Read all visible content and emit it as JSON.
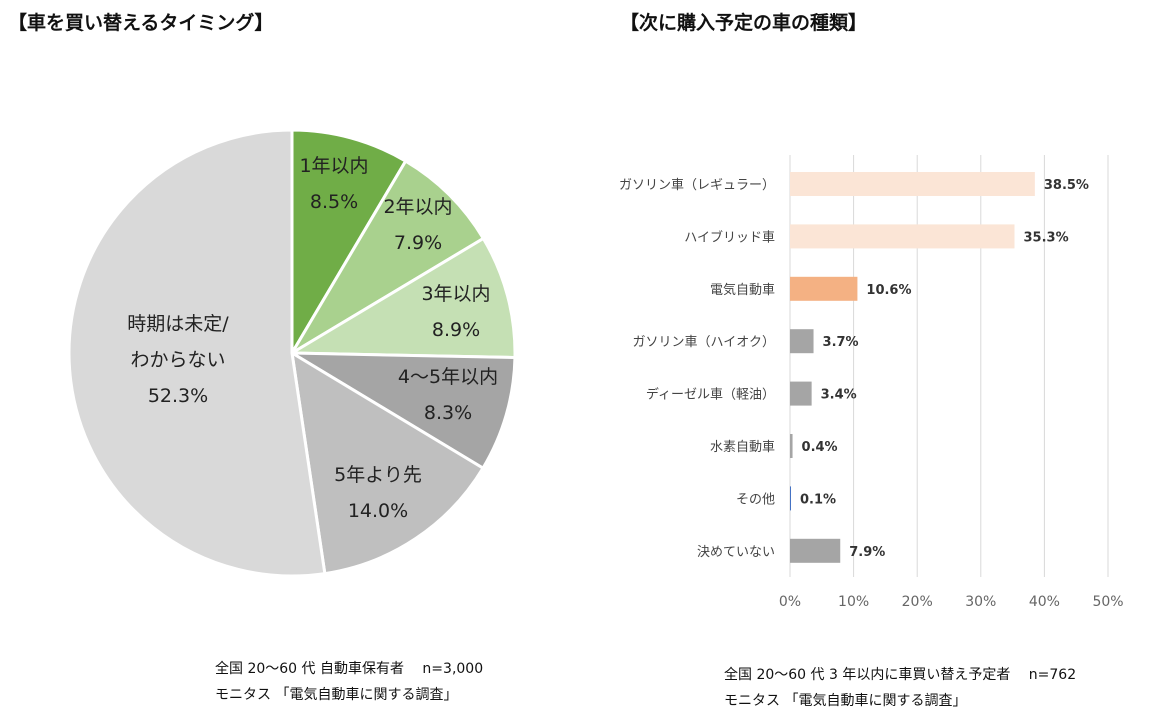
{
  "chart_data": [
    {
      "type": "pie",
      "title": "【車を買い替えるタイミング】",
      "slices": [
        {
          "label": "1年以内",
          "value": 8.5,
          "display": "8.5%",
          "color": "#70ad47"
        },
        {
          "label": "2年以内",
          "value": 7.9,
          "display": "7.9%",
          "color": "#a9d18e"
        },
        {
          "label": "3年以内",
          "value": 8.9,
          "display": "8.9%",
          "color": "#c5e0b4"
        },
        {
          "label": "4～5年以内",
          "value": 8.3,
          "display": "8.3%",
          "color": "#a5a5a5"
        },
        {
          "label": "5年より先",
          "value": 14.0,
          "display": "14.0%",
          "color": "#bfbfbf"
        },
        {
          "label": "時期は未定/|わからない",
          "value": 52.3,
          "display": "52.3%",
          "color": "#d9d9d9"
        }
      ],
      "note": [
        "全国 20～60 代  自動車保有者　 n=3,000",
        "モニタス 「電気自動車に関する調査」"
      ]
    },
    {
      "type": "bar",
      "orientation": "horizontal",
      "title": "【次に購入予定の車の種類】",
      "categories": [
        "ガソリン車（レギュラー）",
        "ハイブリッド車",
        "電気自動車",
        "ガソリン車（ハイオク）",
        "ディーゼル車（軽油）",
        "水素自動車",
        "その他",
        "決めていない"
      ],
      "values": [
        38.5,
        35.3,
        10.6,
        3.7,
        3.4,
        0.4,
        0.1,
        7.9
      ],
      "labels": [
        "38.5%",
        "35.3%",
        "10.6%",
        "3.7%",
        "3.4%",
        "0.4%",
        "0.1%",
        "7.9%"
      ],
      "colors": [
        "#fbe5d6",
        "#fbe5d6",
        "#f4b183",
        "#a5a5a5",
        "#a5a5a5",
        "#a5a5a5",
        "#4472c4",
        "#a5a5a5"
      ],
      "xlim": [
        0,
        50
      ],
      "xticks": [
        "0%",
        "10%",
        "20%",
        "30%",
        "40%",
        "50%"
      ],
      "grid": true,
      "note": [
        "全国 20～60 代  3 年以内に車買い替え予定者　 n=762",
        "モニタス 「電気自動車に関する調査」"
      ]
    }
  ]
}
